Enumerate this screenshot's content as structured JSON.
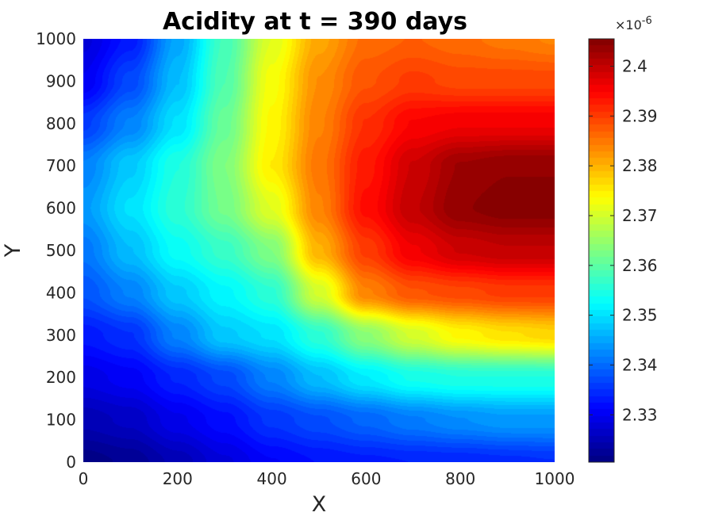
{
  "chart_data": {
    "type": "heatmap",
    "title": "Acidity at t = 390 days",
    "xlabel": "X",
    "ylabel": "Y",
    "xlim": [
      0,
      1000
    ],
    "ylim": [
      0,
      1000
    ],
    "xticks": [
      "0",
      "200",
      "400",
      "600",
      "800",
      "1000"
    ],
    "yticks": [
      "0",
      "100",
      "200",
      "300",
      "400",
      "500",
      "600",
      "700",
      "800",
      "900",
      "1000"
    ],
    "colormap": "jet",
    "colorbar": {
      "exponent_label": "×10",
      "exponent_power": "-6",
      "range": [
        2.3205,
        2.4055
      ],
      "ticks": [
        "2.33",
        "2.34",
        "2.35",
        "2.36",
        "2.37",
        "2.38",
        "2.39",
        "2.4"
      ],
      "tick_values": [
        2.33,
        2.34,
        2.35,
        2.36,
        2.37,
        2.38,
        2.39,
        2.4
      ]
    },
    "grid": false,
    "x": [
      0,
      100,
      200,
      300,
      400,
      500,
      600,
      700,
      800,
      900,
      1000
    ],
    "y": [
      0,
      100,
      200,
      300,
      400,
      500,
      600,
      700,
      800,
      900,
      1000
    ],
    "z": [
      [
        2.321,
        2.3222,
        2.325,
        2.3282,
        2.331,
        2.3325,
        2.3333,
        2.3338,
        2.334,
        2.3345,
        2.335
      ],
      [
        2.325,
        2.3262,
        2.3295,
        2.332,
        2.3355,
        2.3375,
        2.3395,
        2.3415,
        2.343,
        2.344,
        2.344
      ],
      [
        2.329,
        2.3305,
        2.334,
        2.337,
        2.342,
        2.347,
        2.351,
        2.354,
        2.355,
        2.355,
        2.355
      ],
      [
        2.333,
        2.335,
        2.342,
        2.348,
        2.35,
        2.356,
        2.364,
        2.37,
        2.374,
        2.376,
        2.377
      ],
      [
        2.338,
        2.342,
        2.348,
        2.352,
        2.356,
        2.37,
        2.384,
        2.388,
        2.389,
        2.39,
        2.39
      ],
      [
        2.341,
        2.347,
        2.353,
        2.357,
        2.363,
        2.38,
        2.39,
        2.396,
        2.399,
        2.4,
        2.4
      ],
      [
        2.344,
        2.35,
        2.356,
        2.362,
        2.371,
        2.384,
        2.394,
        2.4,
        2.404,
        2.405,
        2.405
      ],
      [
        2.342,
        2.348,
        2.355,
        2.363,
        2.375,
        2.385,
        2.393,
        2.399,
        2.403,
        2.404,
        2.404
      ],
      [
        2.336,
        2.342,
        2.35,
        2.361,
        2.374,
        2.384,
        2.391,
        2.395,
        2.396,
        2.396,
        2.396
      ],
      [
        2.33,
        2.337,
        2.347,
        2.359,
        2.373,
        2.383,
        2.388,
        2.39,
        2.389,
        2.389,
        2.389
      ],
      [
        2.328,
        2.333,
        2.345,
        2.358,
        2.371,
        2.381,
        2.386,
        2.387,
        2.386,
        2.385,
        2.384
      ]
    ]
  }
}
